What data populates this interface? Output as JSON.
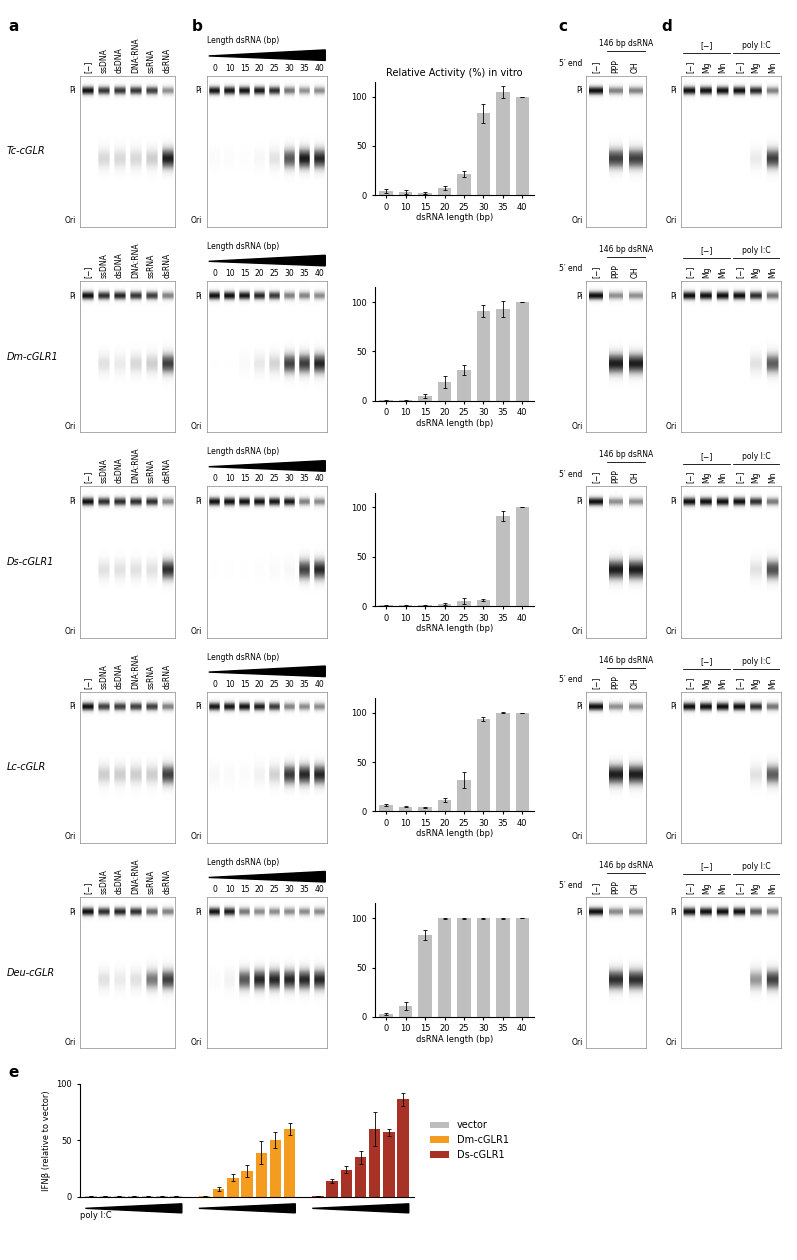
{
  "panel_labels": [
    "a",
    "b",
    "c",
    "d",
    "e"
  ],
  "gel_panels": {
    "band_top": "Pi",
    "band_bottom": "Ori",
    "a": {
      "lanes": [
        "[−]",
        "ssDNA",
        "dsDNA",
        "DNA:RNA",
        "ssRNA",
        "dsRNA"
      ]
    },
    "b": {
      "title": "Length dsRNA (bp)",
      "lanes": [
        "0",
        "10",
        "15",
        "20",
        "25",
        "30",
        "35",
        "40"
      ]
    },
    "c": {
      "header": "146 bp dsRNA",
      "side_label": "5′ end",
      "lanes": [
        "[−]",
        "PPP",
        "OH"
      ]
    },
    "d": {
      "groups": [
        "[−]",
        "poly I:C"
      ],
      "lanes": [
        "[−]",
        "Mg",
        "Mn",
        "[−]",
        "Mg",
        "Mn"
      ]
    }
  },
  "gel_rows": [
    {
      "name": "Tc-cGLR",
      "signal_a": [
        0,
        0.25,
        0.25,
        0.25,
        0.3,
        0.9
      ],
      "signal_c": [
        0,
        0.8,
        0.8
      ],
      "signal_d": [
        0,
        0,
        0,
        0,
        0.15,
        0.8
      ]
    },
    {
      "name": "Dm-cGLR1",
      "signal_a": [
        0,
        0.2,
        0.15,
        0.25,
        0.3,
        0.8
      ],
      "signal_c": [
        0,
        0.9,
        0.9
      ],
      "signal_d": [
        0,
        0,
        0,
        0,
        0.2,
        0.7
      ]
    },
    {
      "name": "Ds-cGLR1",
      "signal_a": [
        0,
        0.2,
        0.2,
        0.2,
        0.2,
        0.85
      ],
      "signal_c": [
        0,
        0.9,
        0.9
      ],
      "signal_d": [
        0,
        0,
        0,
        0,
        0.2,
        0.75
      ]
    },
    {
      "name": "Lc-cGLR",
      "signal_a": [
        0,
        0.3,
        0.3,
        0.3,
        0.3,
        0.8
      ],
      "signal_c": [
        0,
        0.9,
        0.9
      ],
      "signal_d": [
        0,
        0,
        0,
        0,
        0.2,
        0.7
      ]
    },
    {
      "name": "Deu-cGLR",
      "signal_a": [
        0,
        0.2,
        0.15,
        0.2,
        0.6,
        0.8
      ],
      "signal_c": [
        0,
        0.85,
        0.85
      ],
      "signal_d": [
        0,
        0,
        0,
        0,
        0.5,
        0.8
      ]
    }
  ],
  "chart_data": [
    {
      "type": "bar",
      "title": "Relative Activity (%) in vitro",
      "xlabel": "dsRNA length (bp)",
      "categories": [
        "0",
        "10",
        "15",
        "20",
        "25",
        "30",
        "35",
        "40"
      ],
      "values": [
        4,
        3,
        2,
        7,
        22,
        83,
        105,
        100
      ],
      "errors": [
        2,
        2,
        1,
        2,
        3,
        10,
        6,
        0
      ],
      "color": "#bfbfbf",
      "ylim": [
        0,
        115
      ],
      "yticks": [
        0,
        50,
        100
      ]
    },
    {
      "type": "bar",
      "xlabel": "dsRNA length (bp)",
      "categories": [
        "0",
        "10",
        "15",
        "20",
        "25",
        "30",
        "35",
        "40"
      ],
      "values": [
        0.5,
        0.5,
        5,
        19,
        31,
        91,
        93,
        100
      ],
      "errors": [
        0.5,
        0.5,
        2,
        6,
        5,
        6,
        8,
        0
      ],
      "color": "#bfbfbf",
      "ylim": [
        0,
        115
      ],
      "yticks": [
        0,
        50,
        100
      ]
    },
    {
      "type": "bar",
      "xlabel": "dsRNA length (bp)",
      "categories": [
        "0",
        "10",
        "15",
        "20",
        "25",
        "30",
        "35",
        "40"
      ],
      "values": [
        1,
        1,
        1,
        2,
        5,
        6,
        91,
        100
      ],
      "errors": [
        0.5,
        0.5,
        0.5,
        1,
        3,
        1,
        5,
        0
      ],
      "color": "#bfbfbf",
      "ylim": [
        0,
        115
      ],
      "yticks": [
        0,
        50,
        100
      ]
    },
    {
      "type": "bar",
      "xlabel": "dsRNA length (bp)",
      "categories": [
        "0",
        "10",
        "15",
        "20",
        "25",
        "30",
        "35",
        "40"
      ],
      "values": [
        7,
        5,
        4,
        12,
        32,
        94,
        100,
        100
      ],
      "errors": [
        1,
        1,
        1,
        2,
        8,
        2,
        0.5,
        0
      ],
      "color": "#bfbfbf",
      "ylim": [
        0,
        115
      ],
      "yticks": [
        0,
        50,
        100
      ]
    },
    {
      "type": "bar",
      "xlabel": "dsRNA length (bp)",
      "categories": [
        "0",
        "10",
        "15",
        "20",
        "25",
        "30",
        "35",
        "40"
      ],
      "values": [
        3,
        11,
        83,
        100,
        100,
        100,
        100,
        100
      ],
      "errors": [
        1,
        4,
        5,
        0.5,
        0.5,
        0.5,
        0.5,
        0
      ],
      "color": "#bfbfbf",
      "ylim": [
        0,
        115
      ],
      "yticks": [
        0,
        50,
        100
      ]
    },
    {
      "type": "bar",
      "ylabel": "IFNβ (relative to vector)",
      "xlabel": "poly I:C",
      "series": [
        {
          "name": "vector",
          "color": "#bdbdbd",
          "values": [
            1,
            1,
            1,
            1,
            1,
            1,
            1
          ],
          "errors": [
            0.3,
            0.3,
            0.3,
            0.3,
            0.3,
            0.3,
            0.3
          ]
        },
        {
          "name": "Dm-cGLR1",
          "color": "#f39c1f",
          "values": [
            1,
            7,
            17,
            23,
            39,
            50,
            60
          ],
          "errors": [
            0.3,
            1.5,
            3,
            5,
            10,
            7,
            5
          ]
        },
        {
          "name": "Ds-cGLR1",
          "color": "#a93226",
          "values": [
            1,
            14,
            24,
            35,
            60,
            57,
            86
          ],
          "errors": [
            0.3,
            2,
            3,
            6,
            15,
            3,
            6
          ]
        }
      ],
      "ylim": [
        0,
        100
      ],
      "yticks": [
        0,
        50,
        100
      ],
      "legend": "right",
      "tick_labels": "y"
    }
  ]
}
